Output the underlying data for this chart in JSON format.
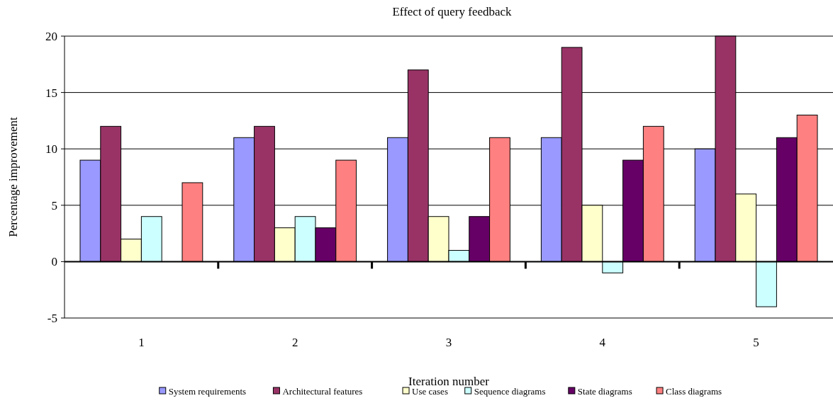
{
  "chart_data": {
    "type": "bar",
    "title": "Effect of query feedback",
    "xlabel": "Iteration number",
    "ylabel": "Percentage improvement",
    "categories": [
      "1",
      "2",
      "3",
      "4",
      "5"
    ],
    "series": [
      {
        "name": "System requirements",
        "color": "#9999ff",
        "values": [
          9,
          11,
          11,
          11,
          10
        ]
      },
      {
        "name": "Architectural features",
        "color": "#993366",
        "values": [
          12,
          12,
          17,
          19,
          20
        ]
      },
      {
        "name": "Use cases",
        "color": "#ffffcc",
        "values": [
          2,
          3,
          4,
          5,
          6
        ]
      },
      {
        "name": "Sequence diagrams",
        "color": "#ccffff",
        "values": [
          4,
          4,
          1,
          -1,
          -4
        ]
      },
      {
        "name": "State diagrams",
        "color": "#660066",
        "values": [
          0,
          3,
          4,
          9,
          11
        ]
      },
      {
        "name": "Class diagrams",
        "color": "#ff8080",
        "values": [
          7,
          9,
          11,
          12,
          13
        ]
      }
    ],
    "ylim": [
      -5,
      20
    ],
    "yticks": [
      -5,
      0,
      5,
      10,
      15,
      20
    ],
    "grid": "y",
    "legend": "bottom"
  }
}
